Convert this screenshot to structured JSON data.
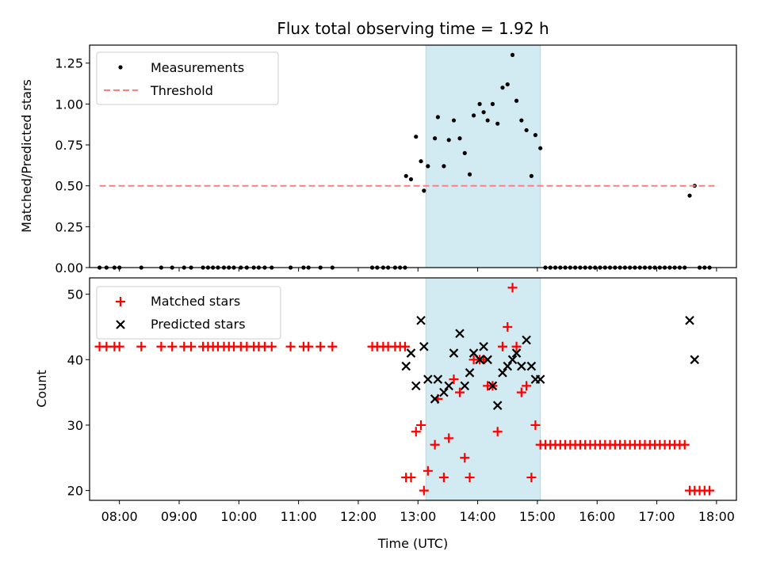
{
  "colors": {
    "measurement": "#000000",
    "threshold": "#ff7f7f",
    "matched": "#ff0000",
    "predicted": "#000000",
    "highlight": "#add8e6"
  },
  "chart_data": [
    {
      "type": "scatter",
      "title": "Flux total observing time = 1.92 h",
      "xlabel": "",
      "ylabel": "Matched/Predicted stars",
      "xlim": [
        "07:30",
        "18:20"
      ],
      "ylim": [
        0,
        1.36
      ],
      "yticks": [
        "0.00",
        "0.25",
        "0.50",
        "0.75",
        "1.00",
        "1.25"
      ],
      "highlight_range": [
        "13:08",
        "15:03"
      ],
      "legend_position": "top-left",
      "series": [
        {
          "name": "Measurements",
          "marker": "dot",
          "points": [
            [
              "07:40",
              0
            ],
            [
              "07:47",
              0
            ],
            [
              "07:55",
              0
            ],
            [
              "08:00",
              0
            ],
            [
              "08:22",
              0
            ],
            [
              "08:42",
              0
            ],
            [
              "08:53",
              0
            ],
            [
              "09:05",
              0
            ],
            [
              "09:12",
              0
            ],
            [
              "09:24",
              0
            ],
            [
              "09:29",
              0
            ],
            [
              "09:34",
              0
            ],
            [
              "09:39",
              0
            ],
            [
              "09:45",
              0
            ],
            [
              "09:50",
              0
            ],
            [
              "09:55",
              0
            ],
            [
              "10:02",
              0
            ],
            [
              "10:08",
              0
            ],
            [
              "10:15",
              0
            ],
            [
              "10:20",
              0
            ],
            [
              "10:26",
              0
            ],
            [
              "10:33",
              0
            ],
            [
              "10:52",
              0
            ],
            [
              "11:05",
              0
            ],
            [
              "11:10",
              0
            ],
            [
              "11:22",
              0
            ],
            [
              "11:34",
              0
            ],
            [
              "12:14",
              0
            ],
            [
              "12:19",
              0
            ],
            [
              "12:25",
              0
            ],
            [
              "12:30",
              0
            ],
            [
              "12:37",
              0
            ],
            [
              "12:42",
              0
            ],
            [
              "12:47",
              0
            ],
            [
              "12:48",
              0.56
            ],
            [
              "12:53",
              0.54
            ],
            [
              "12:58",
              0.8
            ],
            [
              "13:03",
              0.65
            ],
            [
              "13:06",
              0.47
            ],
            [
              "13:10",
              0.62
            ],
            [
              "13:17",
              0.79
            ],
            [
              "13:20",
              0.92
            ],
            [
              "13:26",
              0.62
            ],
            [
              "13:31",
              0.78
            ],
            [
              "13:36",
              0.9
            ],
            [
              "13:42",
              0.79
            ],
            [
              "13:47",
              0.7
            ],
            [
              "13:52",
              0.57
            ],
            [
              "13:56",
              0.93
            ],
            [
              "14:02",
              1.0
            ],
            [
              "14:06",
              0.95
            ],
            [
              "14:10",
              0.9
            ],
            [
              "14:15",
              1.0
            ],
            [
              "14:20",
              0.88
            ],
            [
              "14:25",
              1.1
            ],
            [
              "14:30",
              1.12
            ],
            [
              "14:35",
              1.3
            ],
            [
              "14:39",
              1.02
            ],
            [
              "14:44",
              0.9
            ],
            [
              "14:49",
              0.84
            ],
            [
              "14:54",
              0.56
            ],
            [
              "14:58",
              0.81
            ],
            [
              "15:03",
              0.73
            ],
            [
              "15:08",
              0
            ],
            [
              "15:13",
              0
            ],
            [
              "15:18",
              0
            ],
            [
              "15:23",
              0
            ],
            [
              "15:28",
              0
            ],
            [
              "15:33",
              0
            ],
            [
              "15:38",
              0
            ],
            [
              "15:43",
              0
            ],
            [
              "15:48",
              0
            ],
            [
              "15:53",
              0
            ],
            [
              "15:58",
              0
            ],
            [
              "16:03",
              0
            ],
            [
              "16:08",
              0
            ],
            [
              "16:13",
              0
            ],
            [
              "16:18",
              0
            ],
            [
              "16:23",
              0
            ],
            [
              "16:28",
              0
            ],
            [
              "16:33",
              0
            ],
            [
              "16:38",
              0
            ],
            [
              "16:43",
              0
            ],
            [
              "16:48",
              0
            ],
            [
              "16:53",
              0
            ],
            [
              "16:58",
              0
            ],
            [
              "17:03",
              0
            ],
            [
              "17:08",
              0
            ],
            [
              "17:13",
              0
            ],
            [
              "17:18",
              0
            ],
            [
              "17:23",
              0
            ],
            [
              "17:28",
              0
            ],
            [
              "17:33",
              0.44
            ],
            [
              "17:38",
              0.5
            ],
            [
              "17:43",
              0
            ],
            [
              "17:48",
              0
            ],
            [
              "17:53",
              0
            ]
          ]
        },
        {
          "name": "Threshold",
          "type": "line",
          "style": "dashed",
          "points": [
            [
              "07:40",
              0.5
            ],
            [
              "17:58",
              0.5
            ]
          ]
        }
      ]
    },
    {
      "type": "scatter",
      "title": "",
      "xlabel": "Time (UTC)",
      "ylabel": "Count",
      "xlim": [
        "07:30",
        "18:20"
      ],
      "ylim": [
        18.5,
        52.5
      ],
      "xticks": [
        "08:00",
        "09:00",
        "10:00",
        "11:00",
        "12:00",
        "13:00",
        "14:00",
        "15:00",
        "16:00",
        "17:00",
        "18:00"
      ],
      "yticks": [
        "20",
        "30",
        "40",
        "50"
      ],
      "highlight_range": [
        "13:08",
        "15:03"
      ],
      "legend_position": "top-left",
      "series": [
        {
          "name": "Matched stars",
          "marker": "plus",
          "points": [
            [
              "07:40",
              42
            ],
            [
              "07:47",
              42
            ],
            [
              "07:55",
              42
            ],
            [
              "08:00",
              42
            ],
            [
              "08:22",
              42
            ],
            [
              "08:42",
              42
            ],
            [
              "08:53",
              42
            ],
            [
              "09:05",
              42
            ],
            [
              "09:12",
              42
            ],
            [
              "09:24",
              42
            ],
            [
              "09:29",
              42
            ],
            [
              "09:34",
              42
            ],
            [
              "09:39",
              42
            ],
            [
              "09:45",
              42
            ],
            [
              "09:50",
              42
            ],
            [
              "09:55",
              42
            ],
            [
              "10:02",
              42
            ],
            [
              "10:08",
              42
            ],
            [
              "10:15",
              42
            ],
            [
              "10:20",
              42
            ],
            [
              "10:26",
              42
            ],
            [
              "10:33",
              42
            ],
            [
              "10:52",
              42
            ],
            [
              "11:05",
              42
            ],
            [
              "11:10",
              42
            ],
            [
              "11:22",
              42
            ],
            [
              "11:34",
              42
            ],
            [
              "12:14",
              42
            ],
            [
              "12:19",
              42
            ],
            [
              "12:25",
              42
            ],
            [
              "12:30",
              42
            ],
            [
              "12:37",
              42
            ],
            [
              "12:42",
              42
            ],
            [
              "12:47",
              42
            ],
            [
              "12:48",
              22
            ],
            [
              "12:53",
              22
            ],
            [
              "12:58",
              29
            ],
            [
              "13:03",
              30
            ],
            [
              "13:06",
              20
            ],
            [
              "13:10",
              23
            ],
            [
              "13:17",
              27
            ],
            [
              "13:20",
              34
            ],
            [
              "13:26",
              22
            ],
            [
              "13:31",
              28
            ],
            [
              "13:36",
              37
            ],
            [
              "13:42",
              35
            ],
            [
              "13:47",
              25
            ],
            [
              "13:52",
              22
            ],
            [
              "13:56",
              40
            ],
            [
              "14:02",
              40
            ],
            [
              "14:06",
              40
            ],
            [
              "14:10",
              36
            ],
            [
              "14:15",
              36
            ],
            [
              "14:20",
              29
            ],
            [
              "14:25",
              42
            ],
            [
              "14:30",
              45
            ],
            [
              "14:35",
              51
            ],
            [
              "14:39",
              42
            ],
            [
              "14:44",
              35
            ],
            [
              "14:49",
              36
            ],
            [
              "14:54",
              22
            ],
            [
              "14:58",
              30
            ],
            [
              "15:03",
              27
            ],
            [
              "15:08",
              27
            ],
            [
              "15:13",
              27
            ],
            [
              "15:18",
              27
            ],
            [
              "15:23",
              27
            ],
            [
              "15:28",
              27
            ],
            [
              "15:33",
              27
            ],
            [
              "15:38",
              27
            ],
            [
              "15:43",
              27
            ],
            [
              "15:48",
              27
            ],
            [
              "15:53",
              27
            ],
            [
              "15:58",
              27
            ],
            [
              "16:03",
              27
            ],
            [
              "16:08",
              27
            ],
            [
              "16:13",
              27
            ],
            [
              "16:18",
              27
            ],
            [
              "16:23",
              27
            ],
            [
              "16:28",
              27
            ],
            [
              "16:33",
              27
            ],
            [
              "16:38",
              27
            ],
            [
              "16:43",
              27
            ],
            [
              "16:48",
              27
            ],
            [
              "16:53",
              27
            ],
            [
              "16:58",
              27
            ],
            [
              "17:03",
              27
            ],
            [
              "17:08",
              27
            ],
            [
              "17:13",
              27
            ],
            [
              "17:18",
              27
            ],
            [
              "17:23",
              27
            ],
            [
              "17:28",
              27
            ],
            [
              "17:33",
              20
            ],
            [
              "17:38",
              20
            ],
            [
              "17:43",
              20
            ],
            [
              "17:48",
              20
            ],
            [
              "17:53",
              20
            ]
          ]
        },
        {
          "name": "Predicted stars",
          "marker": "x",
          "points": [
            [
              "12:48",
              39
            ],
            [
              "12:53",
              41
            ],
            [
              "12:58",
              36
            ],
            [
              "13:03",
              46
            ],
            [
              "13:06",
              42
            ],
            [
              "13:10",
              37
            ],
            [
              "13:17",
              34
            ],
            [
              "13:20",
              37
            ],
            [
              "13:26",
              35
            ],
            [
              "13:31",
              36
            ],
            [
              "13:36",
              41
            ],
            [
              "13:42",
              44
            ],
            [
              "13:47",
              36
            ],
            [
              "13:52",
              38
            ],
            [
              "13:56",
              41
            ],
            [
              "14:02",
              40
            ],
            [
              "14:06",
              42
            ],
            [
              "14:10",
              40
            ],
            [
              "14:15",
              36
            ],
            [
              "14:20",
              33
            ],
            [
              "14:25",
              38
            ],
            [
              "14:30",
              39
            ],
            [
              "14:35",
              40
            ],
            [
              "14:39",
              41
            ],
            [
              "14:44",
              39
            ],
            [
              "14:49",
              43
            ],
            [
              "14:54",
              39
            ],
            [
              "14:58",
              37
            ],
            [
              "15:03",
              37
            ],
            [
              "17:33",
              46
            ],
            [
              "17:38",
              40
            ]
          ]
        }
      ]
    }
  ]
}
